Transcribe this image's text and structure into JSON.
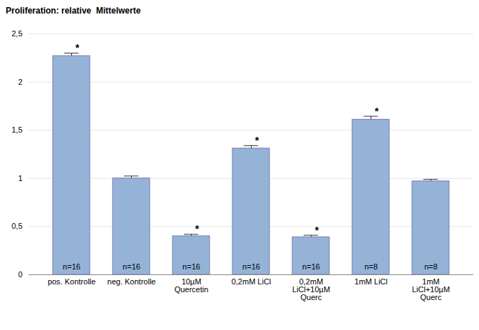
{
  "chart_data": {
    "type": "bar",
    "title": "Proliferation: relative  Mittelwerte",
    "categories": [
      "pos. Kontrolle",
      "neg. Kontrolle",
      "10µM\nQuercetin",
      "0,2mM LiCl",
      "0,2mM\nLiCl+10µM\nQuerc",
      "1mM LiCl",
      "1mM\nLiCl+10µM\nQuerc"
    ],
    "values": [
      2.27,
      1.0,
      0.4,
      1.31,
      0.39,
      1.61,
      0.97
    ],
    "errors": [
      0.03,
      0.025,
      0.02,
      0.03,
      0.02,
      0.035,
      0.02
    ],
    "significance": [
      "*",
      null,
      "*",
      "*",
      "*",
      "*",
      null
    ],
    "n_labels": [
      "n=16",
      "n=16",
      "n=16",
      "n=16",
      "n=16",
      "n=8",
      "n=8"
    ],
    "color": "#95b3d7",
    "ylim": [
      0,
      2.5
    ],
    "yticks": [
      0,
      {
        "value": 0.5,
        "label": "0,5"
      },
      1,
      {
        "value": 1.5,
        "label": "1,5"
      },
      2,
      {
        "value": 2.5,
        "label": "2,5"
      }
    ],
    "grid": true
  }
}
